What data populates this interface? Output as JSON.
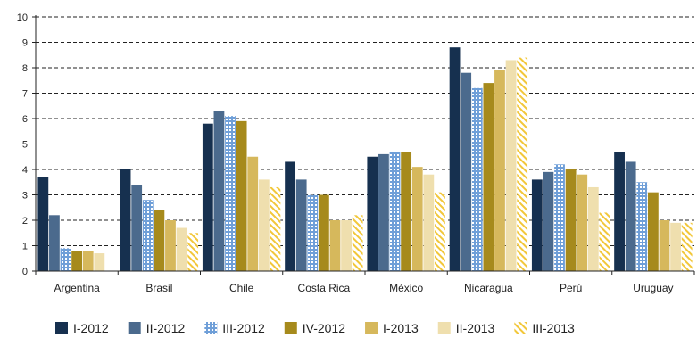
{
  "chart_data": {
    "type": "bar",
    "title": "",
    "xlabel": "",
    "ylabel": "",
    "ylim": [
      0,
      10
    ],
    "yticks": [
      "0",
      "1",
      "2",
      "3",
      "4",
      "5",
      "6",
      "7",
      "8",
      "9",
      "10"
    ],
    "grid": true,
    "legend_position": "bottom",
    "categories": [
      "Argentina",
      "Brasil",
      "Chile",
      "Costa Rica",
      "México",
      "Nicaragua",
      "Perú",
      "Uruguay"
    ],
    "series": [
      {
        "name": "I-2012",
        "color": "#16304f",
        "pattern": "solid",
        "values": [
          3.7,
          4.0,
          5.8,
          4.3,
          4.5,
          8.8,
          3.6,
          4.7
        ]
      },
      {
        "name": "II-2012",
        "color": "#4b6a8d",
        "pattern": "solid",
        "values": [
          2.2,
          3.4,
          6.3,
          3.6,
          4.6,
          7.8,
          3.9,
          4.3
        ]
      },
      {
        "name": "III-2012",
        "color": "#6f9fd8",
        "pattern": "dots",
        "values": [
          0.9,
          2.8,
          6.1,
          3.0,
          4.7,
          7.2,
          4.2,
          3.5
        ]
      },
      {
        "name": "IV-2012",
        "color": "#a68a1c",
        "pattern": "solid",
        "values": [
          0.8,
          2.4,
          5.9,
          3.0,
          4.7,
          7.4,
          4.0,
          3.1
        ]
      },
      {
        "name": "I-2013",
        "color": "#d6b85c",
        "pattern": "solid",
        "values": [
          0.8,
          2.0,
          4.5,
          2.0,
          4.1,
          7.9,
          3.8,
          2.0
        ]
      },
      {
        "name": "II-2013",
        "color": "#efdfae",
        "pattern": "solid",
        "values": [
          0.7,
          1.7,
          3.6,
          2.0,
          3.8,
          8.3,
          3.3,
          1.9
        ]
      },
      {
        "name": "III-2013",
        "color": "#f2c73a",
        "pattern": "stripes",
        "values": [
          0.0,
          1.5,
          3.3,
          2.2,
          3.1,
          8.4,
          2.3,
          1.9
        ]
      }
    ]
  }
}
